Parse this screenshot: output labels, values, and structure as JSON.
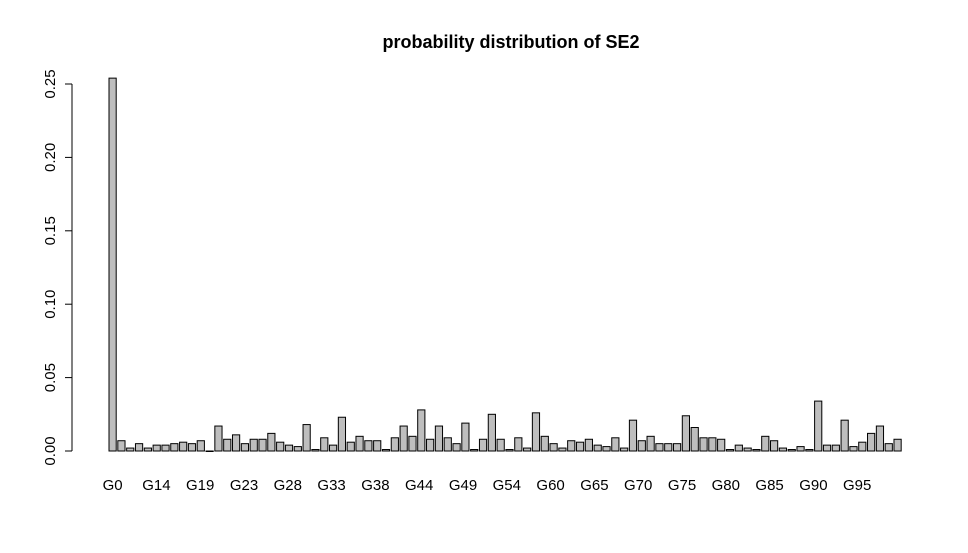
{
  "chart_data": {
    "type": "bar",
    "title": "probability distribution of  SE2",
    "xlabel": "",
    "ylabel": "",
    "ylim": [
      0,
      0.25
    ],
    "yticks": [
      0.0,
      0.05,
      0.1,
      0.15,
      0.2,
      0.25
    ],
    "ytick_labels": [
      "0.00",
      "0.05",
      "0.10",
      "0.15",
      "0.20",
      "0.25"
    ],
    "visible_x_labels": [
      "G0",
      "G14",
      "G19",
      "G23",
      "G28",
      "G33",
      "G38",
      "G44",
      "G49",
      "G54",
      "G60",
      "G65",
      "G70",
      "G75",
      "G80",
      "G85",
      "G90",
      "G95"
    ],
    "bar_fill_color": "#bebebe",
    "grid": false,
    "legend": "none",
    "values": [
      0.254,
      0.007,
      0.002,
      0.005,
      0.002,
      0.004,
      0.004,
      0.005,
      0.006,
      0.005,
      0.007,
      0.0,
      0.017,
      0.008,
      0.011,
      0.005,
      0.008,
      0.008,
      0.012,
      0.006,
      0.004,
      0.003,
      0.018,
      0.001,
      0.009,
      0.004,
      0.023,
      0.006,
      0.01,
      0.007,
      0.007,
      0.001,
      0.009,
      0.017,
      0.01,
      0.028,
      0.008,
      0.017,
      0.009,
      0.005,
      0.019,
      0.001,
      0.008,
      0.025,
      0.008,
      0.001,
      0.009,
      0.002,
      0.026,
      0.01,
      0.005,
      0.002,
      0.007,
      0.006,
      0.008,
      0.004,
      0.003,
      0.009,
      0.002,
      0.021,
      0.007,
      0.01,
      0.005,
      0.005,
      0.005,
      0.024,
      0.016,
      0.009,
      0.009,
      0.008,
      0.001,
      0.004,
      0.002,
      0.001,
      0.01,
      0.007,
      0.002,
      0.001,
      0.003,
      0.001,
      0.034,
      0.004,
      0.004,
      0.021,
      0.003,
      0.006,
      0.012,
      0.017,
      0.005,
      0.008
    ]
  }
}
